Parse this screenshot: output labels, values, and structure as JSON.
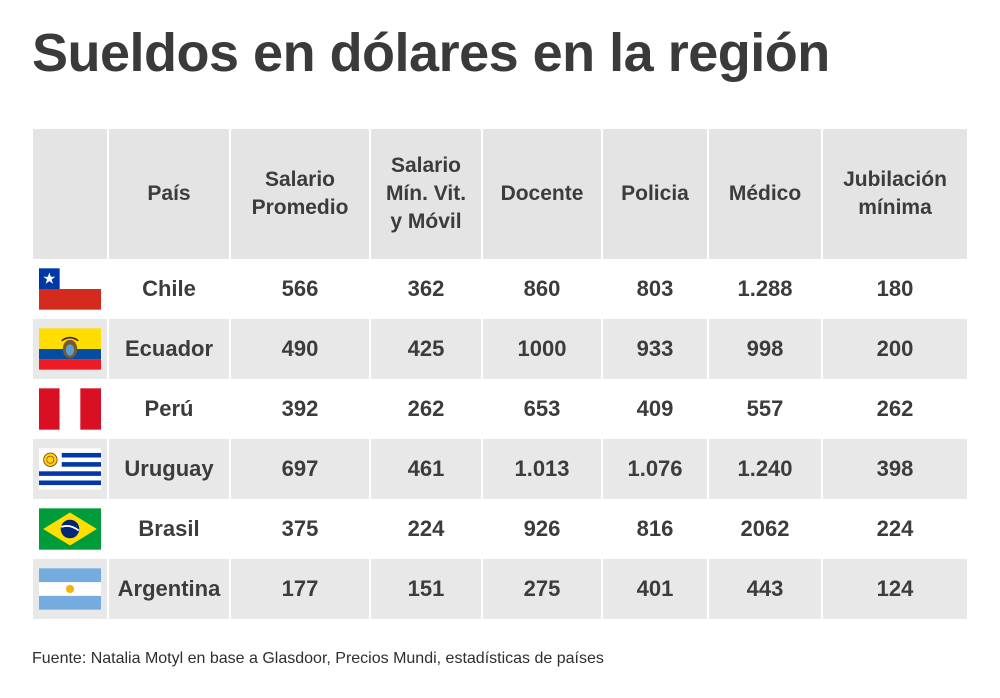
{
  "title": "Sueldos en dólares en la región",
  "chart_data": {
    "type": "table",
    "title": "Sueldos en dólares en la región",
    "columns": [
      "",
      "País",
      "Salario Promedio",
      "Salario Mín. Vit. y Móvil",
      "Docente",
      "Policia",
      "Médico",
      "Jubilación mínima"
    ],
    "rows": [
      {
        "flag": "chile-flag-icon",
        "country": "Chile",
        "values": [
          "566",
          "362",
          "860",
          "803",
          "1.288",
          "180"
        ]
      },
      {
        "flag": "ecuador-flag-icon",
        "country": "Ecuador",
        "values": [
          "490",
          "425",
          "1000",
          "933",
          "998",
          "200"
        ]
      },
      {
        "flag": "peru-flag-icon",
        "country": "Perú",
        "values": [
          "392",
          "262",
          "653",
          "409",
          "557",
          "262"
        ]
      },
      {
        "flag": "uruguay-flag-icon",
        "country": "Uruguay",
        "values": [
          "697",
          "461",
          "1.013",
          "1.076",
          "1.240",
          "398"
        ]
      },
      {
        "flag": "brazil-flag-icon",
        "country": "Brasil",
        "values": [
          "375",
          "224",
          "926",
          "816",
          "2062",
          "224"
        ]
      },
      {
        "flag": "argentina-flag-icon",
        "country": "Argentina",
        "values": [
          "177",
          "151",
          "275",
          "401",
          "443",
          "124"
        ]
      }
    ]
  },
  "source": "Fuente: Natalia Motyl en base a Glasdoor, Precios Mundi, estadísticas de países",
  "colors": {
    "header_bg": "#e4e4e4",
    "band_bg": "#e8e8e8",
    "text": "#3c3c3c"
  }
}
